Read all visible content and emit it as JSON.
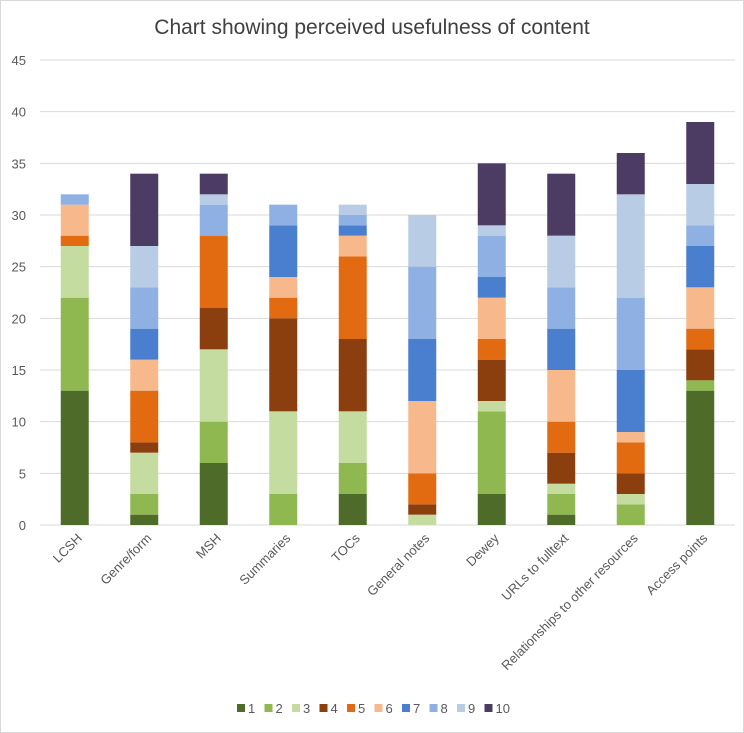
{
  "chart_data": {
    "type": "bar",
    "stacked": true,
    "title": "Chart showing perceived usefulness of content",
    "xlabel": "",
    "ylabel": "",
    "ylim": [
      0,
      45
    ],
    "yticks": [
      0,
      5,
      10,
      15,
      20,
      25,
      30,
      35,
      40,
      45
    ],
    "grid": true,
    "legend_position": "bottom",
    "categories": [
      "LCSH",
      "Genre/form",
      "MSH",
      "Summaries",
      "TOCs",
      "General notes",
      "Dewey",
      "URLs to fulltext",
      "Relationships to other resources",
      "Access points"
    ],
    "series": [
      {
        "name": "1",
        "color": "#4e6b2a",
        "values": [
          13,
          1,
          6,
          0,
          3,
          0,
          3,
          1,
          0,
          13
        ]
      },
      {
        "name": "2",
        "color": "#8fb850",
        "values": [
          9,
          2,
          4,
          3,
          3,
          0,
          8,
          2,
          2,
          1
        ]
      },
      {
        "name": "3",
        "color": "#c5dca0",
        "values": [
          5,
          4,
          7,
          8,
          5,
          1,
          1,
          1,
          1,
          0
        ]
      },
      {
        "name": "4",
        "color": "#8b3f0f",
        "values": [
          0,
          1,
          4,
          9,
          7,
          1,
          4,
          3,
          2,
          3
        ]
      },
      {
        "name": "5",
        "color": "#e26b12",
        "values": [
          1,
          5,
          7,
          2,
          8,
          3,
          2,
          3,
          3,
          2
        ]
      },
      {
        "name": "6",
        "color": "#f7b98c",
        "values": [
          3,
          3,
          0,
          2,
          2,
          7,
          4,
          5,
          1,
          4
        ]
      },
      {
        "name": "7",
        "color": "#4a7fd0",
        "values": [
          0,
          3,
          0,
          5,
          1,
          6,
          2,
          4,
          6,
          4
        ]
      },
      {
        "name": "8",
        "color": "#8eb0e2",
        "values": [
          1,
          4,
          3,
          2,
          1,
          7,
          4,
          4,
          7,
          2
        ]
      },
      {
        "name": "9",
        "color": "#b8cce6",
        "values": [
          0,
          4,
          1,
          0,
          1,
          5,
          1,
          5,
          10,
          4
        ]
      },
      {
        "name": "10",
        "color": "#4c3c63",
        "values": [
          0,
          7,
          2,
          0,
          0,
          0,
          6,
          6,
          4,
          6
        ]
      }
    ]
  }
}
